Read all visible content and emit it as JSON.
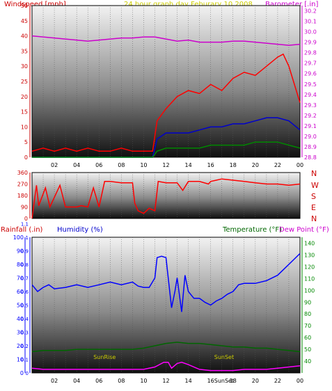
{
  "header": {
    "left_title": "Windspeed [mph]",
    "center_title": "24 hour graph day   Feburary 10,2008",
    "right_title": "Barometer [.in]"
  },
  "bottom_titles": {
    "rainfall": "Rainfall (.in)",
    "humidity": "Humidity (%)",
    "temperature": "Temperature (°F)",
    "dewpoint": "Dew Point (°F)"
  },
  "directions": [
    "N",
    "W",
    "S",
    "E",
    "N"
  ],
  "annotations": {
    "sunrise": "SunRise",
    "sunset": "SunSet"
  },
  "colors": {
    "wind": "#ff0000",
    "gust_blue": "#0000cc",
    "gust_green": "#008800",
    "barometer": "#cc00cc",
    "direction": "#ff0000",
    "humidity": "#0000ff",
    "temperature": "#006600",
    "dewpoint": "#ff00ff",
    "left_axis_top": "#cc0000",
    "right_axis_top": "#cc00cc",
    "left_axis_bottom": "#0000ff",
    "right_axis_bottom": "#008800",
    "annotation": "#cccc00"
  },
  "chart_data": [
    {
      "type": "line",
      "name": "wind-barometer",
      "x_ticks": [
        "02",
        "04",
        "06",
        "08",
        "10",
        "12",
        "14",
        "16",
        "18",
        "20",
        "22",
        "00"
      ],
      "y_left_ticks": [
        0,
        5,
        10,
        15,
        20,
        25,
        30,
        35,
        40,
        45,
        50
      ],
      "y_left_lim": [
        0,
        50
      ],
      "y_right_ticks": [
        28.8,
        28.9,
        29.0,
        29.1,
        29.2,
        29.3,
        29.4,
        29.5,
        29.6,
        29.7,
        29.8,
        29.9,
        30.0,
        30.1,
        30.2
      ],
      "y_right_lim": [
        28.8,
        30.25
      ],
      "series": [
        {
          "axis": "right",
          "x": [
            0,
            1,
            2,
            3,
            4,
            5,
            6,
            7,
            8,
            9,
            10,
            11,
            12,
            13,
            14,
            15,
            16,
            17,
            18,
            19,
            20,
            21,
            22,
            23,
            24
          ],
          "values": [
            29.96,
            29.95,
            29.94,
            29.93,
            29.92,
            29.91,
            29.92,
            29.93,
            29.94,
            29.94,
            29.95,
            29.95,
            29.93,
            29.91,
            29.92,
            29.9,
            29.9,
            29.9,
            29.91,
            29.91,
            29.9,
            29.89,
            29.88,
            29.87,
            29.88
          ]
        },
        {
          "axis": "left",
          "x": [
            0,
            1,
            2,
            3,
            4,
            5,
            6,
            7,
            8,
            9,
            10,
            10.8,
            11.2,
            12,
            13,
            14,
            15,
            16,
            17,
            18,
            19,
            20,
            21,
            22,
            22.5,
            23,
            23.5,
            24
          ],
          "values": [
            2,
            3,
            2,
            3,
            2,
            3,
            2,
            2,
            3,
            2,
            2,
            2,
            12,
            16,
            20,
            22,
            21,
            24,
            22,
            26,
            28,
            27,
            30,
            33,
            34,
            30,
            24,
            18
          ]
        },
        {
          "axis": "left",
          "x": [
            0,
            2,
            4,
            6,
            8,
            10,
            10.8,
            11.2,
            12,
            13,
            14,
            15,
            16,
            17,
            18,
            19,
            20,
            21,
            22,
            23,
            24
          ],
          "values": [
            0,
            0,
            0,
            0,
            0,
            0,
            0,
            6,
            8,
            8,
            8,
            9,
            10,
            10,
            11,
            11,
            12,
            13,
            13,
            12,
            9
          ]
        },
        {
          "axis": "left",
          "x": [
            0,
            2,
            4,
            6,
            8,
            10,
            10.8,
            11.2,
            12,
            13,
            14,
            15,
            16,
            17,
            18,
            19,
            20,
            21,
            22,
            23,
            24
          ],
          "values": [
            0,
            0,
            0,
            0,
            0,
            0,
            0,
            2,
            3,
            3,
            3,
            3,
            4,
            4,
            4,
            4,
            5,
            5,
            5,
            4,
            3
          ]
        }
      ]
    },
    {
      "type": "line",
      "name": "wind-direction",
      "x_ticks": [],
      "y_ticks": [
        0,
        90,
        180,
        270,
        360
      ],
      "y_lim": [
        0,
        360
      ],
      "series": [
        {
          "x": [
            0,
            0.4,
            0.6,
            1.2,
            1.6,
            2.5,
            3,
            4,
            4.4,
            5,
            5.5,
            6,
            6.5,
            7,
            8,
            8.5,
            9,
            9.2,
            9.5,
            10,
            10.5,
            11,
            11.3,
            12,
            12.5,
            13,
            13.5,
            14,
            15,
            15.8,
            16,
            16.5,
            17,
            18,
            19,
            20,
            21,
            22,
            23,
            24
          ],
          "values": [
            0,
            260,
            100,
            240,
            90,
            260,
            90,
            90,
            100,
            90,
            240,
            90,
            290,
            290,
            280,
            280,
            280,
            120,
            60,
            40,
            80,
            60,
            290,
            280,
            280,
            280,
            220,
            290,
            290,
            270,
            290,
            300,
            310,
            300,
            290,
            280,
            270,
            270,
            260,
            270
          ]
        }
      ]
    },
    {
      "type": "line",
      "name": "humidity-temperature",
      "x_ticks": [
        "02",
        "04",
        "06",
        "08",
        "10",
        "12",
        "14",
        "16",
        "18",
        "20",
        "22",
        "00"
      ],
      "y_left_outer_ticks": [
        0,
        0.1,
        0.2,
        0.3,
        0.4,
        0.5,
        0.6,
        0.7,
        0.8,
        0.9,
        1.0,
        1.1
      ],
      "y_left_ticks": [
        0,
        10,
        20,
        30,
        40,
        50,
        60,
        70,
        80,
        90,
        100
      ],
      "y_left_lim": [
        0,
        100
      ],
      "y_right_ticks": [
        40,
        50,
        60,
        70,
        80,
        90,
        100,
        110,
        120,
        130,
        140
      ],
      "y_right_lim": [
        30,
        145
      ],
      "series": [
        {
          "axis": "left",
          "x": [
            0,
            0.5,
            1,
            1.5,
            2,
            3,
            4,
            5,
            6,
            7,
            8,
            9,
            9.5,
            10,
            10.5,
            11,
            11.2,
            11.6,
            12,
            12.2,
            12.5,
            12.8,
            13,
            13.4,
            13.7,
            14,
            14.5,
            15,
            15.5,
            16,
            16.5,
            17,
            17.5,
            18,
            18.5,
            19,
            20,
            21,
            22,
            23,
            24
          ],
          "values": [
            65,
            60,
            63,
            65,
            62,
            63,
            65,
            63,
            65,
            67,
            65,
            67,
            64,
            63,
            63,
            70,
            85,
            86,
            85,
            70,
            48,
            60,
            70,
            45,
            72,
            60,
            55,
            55,
            52,
            50,
            53,
            55,
            58,
            60,
            65,
            66,
            66,
            68,
            72,
            80,
            88
          ]
        },
        {
          "axis": "right",
          "x": [
            0,
            1,
            2,
            3,
            4,
            5,
            6,
            7,
            8,
            9,
            10,
            11,
            12,
            13,
            14,
            15,
            16,
            17,
            18,
            19,
            20,
            21,
            22,
            23,
            24
          ],
          "values": [
            48,
            49,
            49,
            49,
            50,
            50,
            50,
            50,
            50,
            50,
            51,
            53,
            55,
            56,
            55,
            55,
            54,
            53,
            52,
            52,
            51,
            51,
            50,
            49,
            48
          ]
        },
        {
          "axis": "right",
          "x": [
            0,
            1,
            2,
            3,
            4,
            5,
            6,
            7,
            8,
            9,
            10,
            11,
            11.8,
            12.2,
            12.5,
            13,
            13.4,
            14,
            15,
            16,
            17,
            18,
            19,
            20,
            21,
            22,
            23,
            24
          ],
          "values": [
            34,
            33,
            33,
            33,
            33,
            33,
            33,
            33,
            33,
            33,
            33,
            35,
            39,
            39,
            34,
            38,
            39,
            37,
            33,
            32,
            32,
            32,
            33,
            33,
            33,
            34,
            35,
            36
          ]
        }
      ]
    }
  ]
}
